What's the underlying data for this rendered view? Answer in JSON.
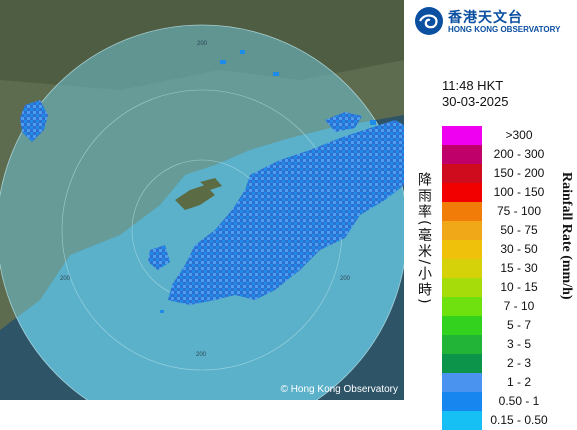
{
  "map": {
    "range_ring_labels": [
      "200",
      "200",
      "200",
      "200"
    ],
    "copyright": "© Hong Kong Observatory"
  },
  "logo": {
    "icon": "hko-swirl-logo",
    "zh": "香港天文台",
    "en": "HONG KONG OBSERVATORY"
  },
  "time": "11:48 HKT",
  "date": "30-03-2025",
  "legend": {
    "unit_zh": "降雨率(毫米/小時)",
    "unit_en": "Rainfall Rate (mm/h)",
    "items": [
      {
        "label": ">300",
        "color": "#f000f0"
      },
      {
        "label": "200 - 300",
        "color": "#c0006a"
      },
      {
        "label": "150 - 200",
        "color": "#cf0c1d"
      },
      {
        "label": "100 - 150",
        "color": "#f20000"
      },
      {
        "label": "75 - 100",
        "color": "#f27c08"
      },
      {
        "label": "50 - 75",
        "color": "#f0a818"
      },
      {
        "label": "30 - 50",
        "color": "#f0c10a"
      },
      {
        "label": "15 - 30",
        "color": "#d6d20a"
      },
      {
        "label": "10 - 15",
        "color": "#a6dc0a"
      },
      {
        "label": "7 - 10",
        "color": "#6fe10f"
      },
      {
        "label": "5 - 7",
        "color": "#33d21e"
      },
      {
        "label": "3 - 5",
        "color": "#22b437"
      },
      {
        "label": "2 - 3",
        "color": "#0d944b"
      },
      {
        "label": "1 - 2",
        "color": "#4a94f0"
      },
      {
        "label": "0.50 - 1",
        "color": "#1786ee"
      },
      {
        "label": "0.15 - 0.50",
        "color": "#16c0f4"
      }
    ]
  }
}
